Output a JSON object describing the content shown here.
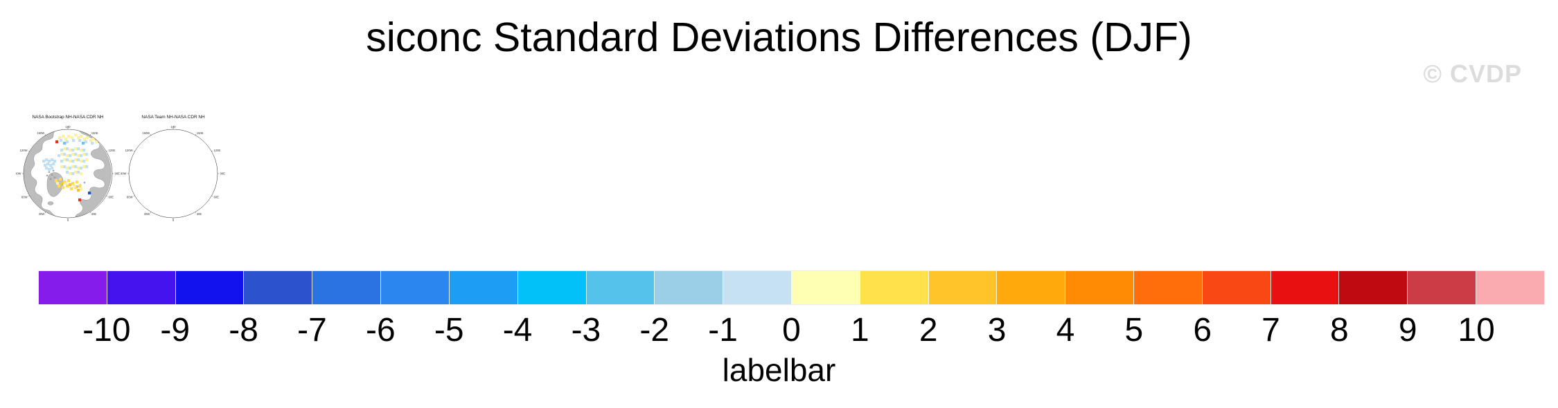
{
  "title": "siconc Standard Deviations Differences (DJF)",
  "watermark": "© CVDP",
  "maps": {
    "land_color": "#BDBDBD",
    "coast_color": "#7A7A7A",
    "circle_outline": "#222222",
    "lon_labels": [
      {
        "text": "180",
        "angle": 0
      },
      {
        "text": "150E",
        "angle": 30
      },
      {
        "text": "120E",
        "angle": 60
      },
      {
        "text": "90E",
        "angle": 90
      },
      {
        "text": "60E",
        "angle": 120
      },
      {
        "text": "30E",
        "angle": 150
      },
      {
        "text": "0",
        "angle": 180
      },
      {
        "text": "30W",
        "angle": 210
      },
      {
        "text": "60W",
        "angle": 240
      },
      {
        "text": "90W",
        "angle": 270
      },
      {
        "text": "120W",
        "angle": 300
      },
      {
        "text": "150W",
        "angle": 330
      }
    ],
    "cell_colors": {
      "py": "#FFF0A0",
      "yl": "#FFDB4E",
      "gd": "#FFC22A",
      "or": "#FF9D16",
      "rd": "#E8321E",
      "lb": "#BEE0F4",
      "mb": "#6CC4F0",
      "sb": "#1E93EC",
      "db": "#1558C8"
    },
    "panels": [
      {
        "title": "NASA Bootstrap NH-NASA CDR NH",
        "cells": [
          [
            57,
            42,
            "rd"
          ],
          [
            61,
            36,
            "py"
          ],
          [
            66,
            34,
            "py"
          ],
          [
            70,
            38,
            "py"
          ],
          [
            74,
            34,
            "py"
          ],
          [
            79,
            36,
            "py"
          ],
          [
            84,
            32,
            "py"
          ],
          [
            88,
            36,
            "py"
          ],
          [
            92,
            34,
            "py"
          ],
          [
            97,
            38,
            "py"
          ],
          [
            101,
            36,
            "py"
          ],
          [
            106,
            40,
            "py"
          ],
          [
            110,
            38,
            "py"
          ],
          [
            114,
            42,
            "py"
          ],
          [
            63,
            40,
            "lb"
          ],
          [
            72,
            42,
            "lb"
          ],
          [
            81,
            40,
            "lb"
          ],
          [
            90,
            40,
            "lb"
          ],
          [
            99,
            42,
            "lb"
          ],
          [
            108,
            44,
            "lb"
          ],
          [
            68,
            44,
            "mb"
          ],
          [
            95,
            44,
            "mb"
          ],
          [
            64,
            54,
            "lb"
          ],
          [
            72,
            52,
            "lb"
          ],
          [
            80,
            54,
            "lb"
          ],
          [
            88,
            52,
            "lb"
          ],
          [
            96,
            54,
            "lb"
          ],
          [
            60,
            62,
            "lb"
          ],
          [
            68,
            60,
            "lb"
          ],
          [
            76,
            62,
            "lb"
          ],
          [
            84,
            60,
            "lb"
          ],
          [
            92,
            62,
            "lb"
          ],
          [
            100,
            60,
            "lb"
          ],
          [
            64,
            70,
            "lb"
          ],
          [
            72,
            68,
            "lb"
          ],
          [
            80,
            70,
            "lb"
          ],
          [
            88,
            68,
            "lb"
          ],
          [
            96,
            70,
            "lb"
          ],
          [
            68,
            78,
            "lb"
          ],
          [
            76,
            80,
            "lb"
          ],
          [
            84,
            78,
            "lb"
          ],
          [
            92,
            80,
            "lb"
          ],
          [
            100,
            78,
            "lb"
          ],
          [
            72,
            86,
            "lb"
          ],
          [
            80,
            88,
            "lb"
          ],
          [
            88,
            86,
            "lb"
          ],
          [
            68,
            52,
            "py"
          ],
          [
            76,
            54,
            "py"
          ],
          [
            84,
            52,
            "py"
          ],
          [
            92,
            54,
            "py"
          ],
          [
            64,
            60,
            "py"
          ],
          [
            72,
            62,
            "py"
          ],
          [
            80,
            60,
            "py"
          ],
          [
            88,
            62,
            "py"
          ],
          [
            96,
            60,
            "py"
          ],
          [
            68,
            68,
            "py"
          ],
          [
            76,
            70,
            "py"
          ],
          [
            84,
            68,
            "py"
          ],
          [
            92,
            70,
            "py"
          ],
          [
            100,
            68,
            "py"
          ],
          [
            64,
            78,
            "py"
          ],
          [
            72,
            80,
            "py"
          ],
          [
            80,
            78,
            "py"
          ],
          [
            88,
            80,
            "py"
          ],
          [
            96,
            78,
            "py"
          ],
          [
            76,
            88,
            "py"
          ],
          [
            84,
            86,
            "py"
          ],
          [
            92,
            88,
            "py"
          ],
          [
            38,
            70,
            "lb"
          ],
          [
            42,
            68,
            "lb"
          ],
          [
            46,
            70,
            "lb"
          ],
          [
            50,
            68,
            "lb"
          ],
          [
            54,
            70,
            "lb"
          ],
          [
            40,
            76,
            "lb"
          ],
          [
            44,
            74,
            "lb"
          ],
          [
            48,
            76,
            "lb"
          ],
          [
            52,
            74,
            "lb"
          ],
          [
            42,
            80,
            "lb"
          ],
          [
            46,
            82,
            "lb"
          ],
          [
            50,
            80,
            "lb"
          ],
          [
            56,
            98,
            "yl"
          ],
          [
            62,
            96,
            "yl"
          ],
          [
            68,
            100,
            "yl"
          ],
          [
            74,
            98,
            "yl"
          ],
          [
            80,
            102,
            "yl"
          ],
          [
            86,
            100,
            "yl"
          ],
          [
            60,
            106,
            "yl"
          ],
          [
            66,
            108,
            "yl"
          ],
          [
            72,
            106,
            "yl"
          ],
          [
            78,
            110,
            "yl"
          ],
          [
            84,
            108,
            "yl"
          ],
          [
            90,
            106,
            "yl"
          ],
          [
            64,
            102,
            "gd"
          ],
          [
            76,
            104,
            "gd"
          ],
          [
            88,
            112,
            "gd"
          ],
          [
            58,
            102,
            "py"
          ],
          [
            70,
            102,
            "py"
          ],
          [
            82,
            106,
            "py"
          ],
          [
            92,
            110,
            "py"
          ],
          [
            104,
            116,
            "db"
          ],
          [
            90,
            126,
            "rd"
          ]
        ]
      },
      {
        "title": "NASA Team NH-NASA CDR NH",
        "cells": [
          [
            56,
            34,
            "mb"
          ],
          [
            62,
            32,
            "mb"
          ],
          [
            68,
            36,
            "mb"
          ],
          [
            76,
            32,
            "mb"
          ],
          [
            84,
            34,
            "mb"
          ],
          [
            92,
            32,
            "mb"
          ],
          [
            100,
            36,
            "mb"
          ],
          [
            108,
            34,
            "mb"
          ],
          [
            114,
            38,
            "mb"
          ],
          [
            60,
            38,
            "sb"
          ],
          [
            72,
            38,
            "sb"
          ],
          [
            88,
            38,
            "sb"
          ],
          [
            96,
            40,
            "sb"
          ],
          [
            104,
            40,
            "sb"
          ],
          [
            54,
            38,
            "lb"
          ],
          [
            66,
            40,
            "lb"
          ],
          [
            80,
            40,
            "lb"
          ],
          [
            110,
            42,
            "lb"
          ],
          [
            74,
            42,
            "py"
          ],
          [
            94,
            44,
            "py"
          ],
          [
            64,
            28,
            "yl"
          ],
          [
            90,
            28,
            "yl"
          ],
          [
            112,
            46,
            "yl"
          ],
          [
            74,
            56,
            "yl"
          ],
          [
            82,
            54,
            "yl"
          ],
          [
            90,
            56,
            "yl"
          ],
          [
            98,
            54,
            "yl"
          ],
          [
            78,
            62,
            "yl"
          ],
          [
            86,
            60,
            "yl"
          ],
          [
            94,
            62,
            "yl"
          ],
          [
            102,
            60,
            "yl"
          ],
          [
            110,
            62,
            "yl"
          ],
          [
            74,
            68,
            "yl"
          ],
          [
            82,
            70,
            "yl"
          ],
          [
            90,
            68,
            "yl"
          ],
          [
            98,
            70,
            "yl"
          ],
          [
            106,
            68,
            "yl"
          ],
          [
            78,
            76,
            "yl"
          ],
          [
            86,
            78,
            "yl"
          ],
          [
            94,
            76,
            "yl"
          ],
          [
            102,
            78,
            "yl"
          ],
          [
            110,
            76,
            "yl"
          ],
          [
            82,
            84,
            "yl"
          ],
          [
            90,
            86,
            "yl"
          ],
          [
            98,
            84,
            "yl"
          ],
          [
            106,
            86,
            "yl"
          ],
          [
            70,
            60,
            "yl"
          ],
          [
            70,
            76,
            "yl"
          ],
          [
            74,
            84,
            "yl"
          ],
          [
            78,
            92,
            "yl"
          ],
          [
            94,
            54,
            "gd"
          ],
          [
            106,
            60,
            "gd"
          ],
          [
            86,
            66,
            "gd"
          ],
          [
            98,
            62,
            "gd"
          ],
          [
            78,
            70,
            "gd"
          ],
          [
            102,
            72,
            "gd"
          ],
          [
            90,
            78,
            "gd"
          ],
          [
            110,
            84,
            "gd"
          ],
          [
            94,
            88,
            "gd"
          ],
          [
            86,
            92,
            "gd"
          ],
          [
            102,
            66,
            "or"
          ],
          [
            94,
            70,
            "or"
          ],
          [
            106,
            78,
            "or"
          ],
          [
            98,
            90,
            "or"
          ],
          [
            90,
            94,
            "or"
          ],
          [
            102,
            92,
            "or"
          ],
          [
            70,
            100,
            "sb"
          ],
          [
            78,
            98,
            "sb"
          ],
          [
            86,
            100,
            "sb"
          ],
          [
            94,
            98,
            "sb"
          ],
          [
            102,
            100,
            "sb"
          ],
          [
            110,
            98,
            "sb"
          ],
          [
            74,
            104,
            "sb"
          ],
          [
            82,
            106,
            "sb"
          ],
          [
            90,
            104,
            "sb"
          ],
          [
            98,
            106,
            "sb"
          ],
          [
            106,
            104,
            "sb"
          ],
          [
            66,
            104,
            "mb"
          ],
          [
            86,
            108,
            "mb"
          ],
          [
            114,
            102,
            "mb"
          ],
          [
            94,
            110,
            "db"
          ],
          [
            78,
            108,
            "db"
          ],
          [
            38,
            100,
            "mb"
          ],
          [
            44,
            104,
            "mb"
          ],
          [
            50,
            108,
            "mb"
          ],
          [
            40,
            112,
            "mb"
          ],
          [
            46,
            116,
            "mb"
          ],
          [
            52,
            120,
            "mb"
          ],
          [
            36,
            106,
            "mb"
          ],
          [
            42,
            98,
            "lb"
          ],
          [
            48,
            100,
            "lb"
          ],
          [
            54,
            112,
            "lb"
          ],
          [
            44,
            120,
            "lb"
          ],
          [
            56,
            104,
            "lb"
          ],
          [
            52,
            80,
            "yl"
          ],
          [
            60,
            78,
            "yl"
          ],
          [
            48,
            84,
            "yl"
          ],
          [
            56,
            84,
            "gd"
          ],
          [
            90,
            128,
            "rd"
          ]
        ]
      }
    ]
  },
  "labelbar": {
    "title": "labelbar",
    "ticks": [
      "-10",
      "-9",
      "-8",
      "-7",
      "-6",
      "-5",
      "-4",
      "-3",
      "-2",
      "-1",
      "0",
      "1",
      "2",
      "3",
      "4",
      "5",
      "6",
      "7",
      "8",
      "9",
      "10"
    ],
    "colors": [
      "#851CE9",
      "#4413EE",
      "#1212EF",
      "#2C52CE",
      "#2C73E2",
      "#2B86F0",
      "#1E9DF5",
      "#01C1F8",
      "#54C2EB",
      "#9BCFE8",
      "#C6E1F2",
      "#FFFFB4",
      "#FFE14C",
      "#FFC42A",
      "#FFA90D",
      "#FF8A04",
      "#FF6E0A",
      "#F94814",
      "#E81010",
      "#BE0A10",
      "#CB3C46",
      "#F9ABB0"
    ]
  },
  "chart_data": {
    "type": "heatmap",
    "title": "siconc Standard Deviations Differences (DJF)",
    "panels": [
      "NASA Bootstrap NH-NASA CDR NH",
      "NASA Team NH-NASA CDR NH"
    ],
    "projection": "north polar stereographic",
    "projection_labels": [
      "180",
      "150E",
      "120E",
      "90E",
      "60E",
      "30E",
      "0",
      "30W",
      "60W",
      "90W",
      "120W",
      "150W"
    ],
    "colorbar_title": "labelbar",
    "levels": [
      -10,
      -9,
      -8,
      -7,
      -6,
      -5,
      -4,
      -3,
      -2,
      -1,
      0,
      1,
      2,
      3,
      4,
      5,
      6,
      7,
      8,
      9,
      10
    ],
    "colors": [
      "#851CE9",
      "#4413EE",
      "#1212EF",
      "#2C52CE",
      "#2C73E2",
      "#2B86F0",
      "#1E9DF5",
      "#01C1F8",
      "#54C2EB",
      "#9BCFE8",
      "#C6E1F2",
      "#FFFFB4",
      "#FFE14C",
      "#FFC42A",
      "#FFA90D",
      "#FF8A04",
      "#FF6E0A",
      "#F94814",
      "#E81010",
      "#BE0A10",
      "#CB3C46",
      "#F9ABB0"
    ],
    "legend_position": "bottom"
  }
}
